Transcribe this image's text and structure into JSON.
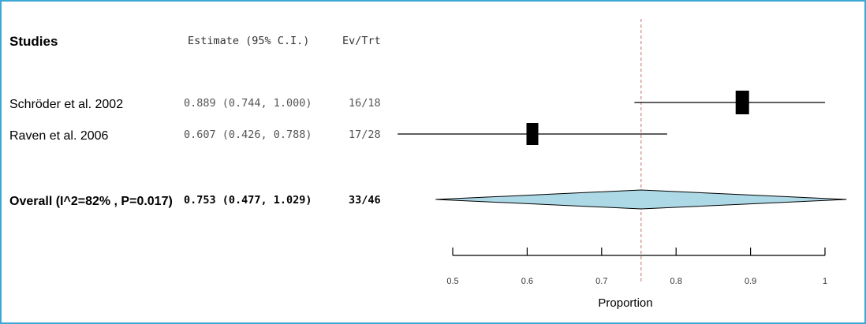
{
  "chart_data": {
    "type": "forest",
    "headers": {
      "studies": "Studies",
      "estimate": "Estimate (95% C.I.)",
      "events": "Ev/Trt"
    },
    "studies": [
      {
        "label": "Schröder et al. 2002",
        "estimate": 0.889,
        "lower": 0.744,
        "upper": 1.0,
        "ci_text": "0.889 (0.744, 1.000)",
        "ev_trt": "16/18"
      },
      {
        "label": "Raven et al. 2006",
        "estimate": 0.607,
        "lower": 0.426,
        "upper": 0.788,
        "ci_text": "0.607 (0.426, 0.788)",
        "ev_trt": "17/28"
      }
    ],
    "overall": {
      "label": "Overall (I^2=82% , P=0.017)",
      "estimate": 0.753,
      "lower": 0.477,
      "upper": 1.029,
      "ci_text": "0.753 (0.477, 1.029)",
      "ev_trt": "33/46"
    },
    "xaxis": {
      "label": "Proportion",
      "ticks": [
        0.5,
        0.6,
        0.7,
        0.8,
        0.9,
        1
      ],
      "tick_labels": [
        "0.5",
        "0.6",
        "0.7",
        "0.8",
        "0.9",
        "1"
      ],
      "range": [
        0.5,
        1
      ]
    },
    "reference_line": 0.753,
    "colors": {
      "diamond": "#add8e6",
      "square": "#000000",
      "reference": "#cc8888",
      "border": "#3fa9d6"
    }
  }
}
